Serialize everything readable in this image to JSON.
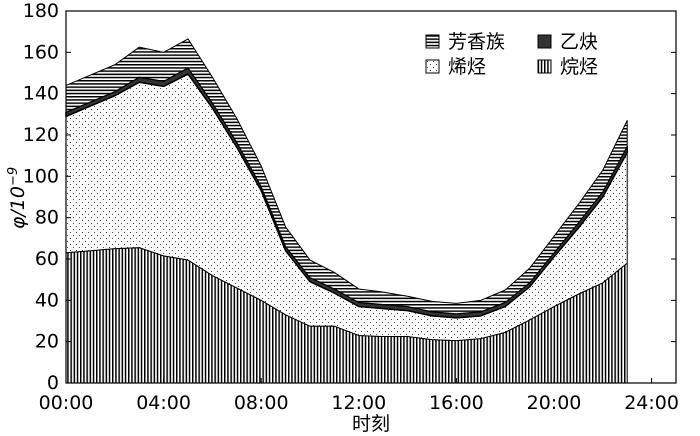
{
  "chart_data": {
    "type": "area",
    "stacked": true,
    "xlabel": "时刻",
    "ylabel": "φ/10⁻⁹",
    "ylabel_parts": {
      "symbol": "φ/10",
      "exponent": "−9"
    },
    "x_ticks": [
      "00:00",
      "04:00",
      "08:00",
      "12:00",
      "16:00",
      "20:00",
      "24:00"
    ],
    "x_range": [
      0,
      24
    ],
    "xlim_hours": [
      0,
      25
    ],
    "ylim": [
      0,
      180
    ],
    "y_ticks": [
      "0",
      "20",
      "40",
      "60",
      "80",
      "100",
      "120",
      "140",
      "160",
      "180"
    ],
    "grid": false,
    "legend_position": "top-right",
    "x_hours": [
      0,
      1,
      2,
      3,
      4,
      5,
      6,
      7,
      8,
      9,
      10,
      11,
      12,
      13,
      14,
      15,
      16,
      17,
      18,
      19,
      20,
      21,
      22,
      23
    ],
    "series": [
      {
        "name": "烷烃",
        "key": "alkane",
        "values": [
          63,
          64,
          65,
          65.5,
          61.5,
          59.5,
          52,
          46,
          40,
          33,
          27.5,
          27.5,
          23,
          22.5,
          22.5,
          21,
          20.5,
          21.5,
          24.5,
          30.5,
          37,
          43,
          48.5,
          58
        ]
      },
      {
        "name": "烯烃",
        "key": "alkene",
        "values": [
          66,
          70,
          74,
          80,
          82,
          90,
          81,
          68,
          53,
          31,
          21.5,
          16,
          14,
          13.5,
          12.5,
          11.5,
          11,
          11,
          12.5,
          16,
          24,
          32,
          41.5,
          53.5
        ]
      },
      {
        "name": "乙炔",
        "key": "acetylene",
        "values": [
          2,
          2,
          2,
          2.5,
          2.5,
          3,
          2.5,
          2.5,
          2,
          2,
          2,
          2,
          2,
          2,
          2,
          2,
          2,
          2,
          2,
          2,
          2,
          2.5,
          2.5,
          3
        ]
      },
      {
        "name": "芳香族",
        "key": "aromatic",
        "values": [
          13,
          13,
          13,
          14.5,
          14,
          14,
          12.5,
          11.5,
          10,
          9.5,
          8.5,
          8,
          6.5,
          6,
          5,
          5,
          5,
          5.5,
          6,
          7,
          8,
          9,
          10.5,
          12.5
        ]
      }
    ],
    "legend": [
      "芳香族",
      "乙炔",
      "烯烃",
      "烷烃"
    ]
  }
}
